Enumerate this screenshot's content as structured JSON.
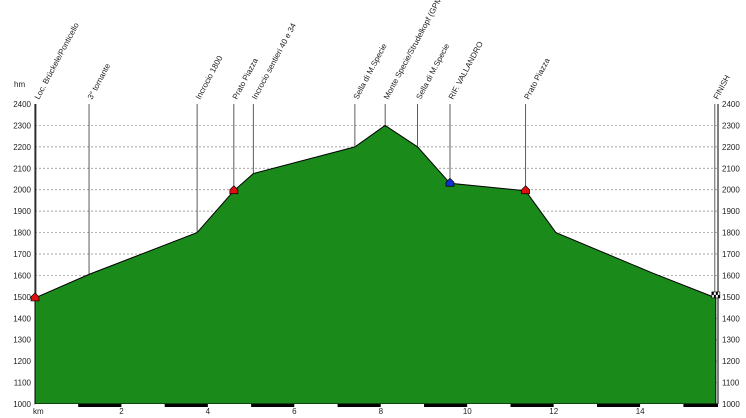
{
  "chart_data": {
    "type": "area",
    "title": "",
    "ylabel": "hm",
    "xlabel": "km",
    "ylim": [
      1000,
      2400
    ],
    "xlim": [
      0,
      15.8
    ],
    "yticks": [
      1000,
      1100,
      1200,
      1300,
      1400,
      1500,
      1600,
      1700,
      1800,
      1900,
      2000,
      2100,
      2200,
      2300,
      2400
    ],
    "xticks": [
      2,
      4,
      6,
      8,
      10,
      12,
      14
    ],
    "grid": true,
    "colors": {
      "fill": "#1a8a1a",
      "line": "#000000",
      "grid": "#888888"
    },
    "profile": [
      {
        "x": 0.0,
        "y": 1495
      },
      {
        "x": 1.25,
        "y": 1605
      },
      {
        "x": 3.75,
        "y": 1800
      },
      {
        "x": 4.6,
        "y": 1995
      },
      {
        "x": 5.05,
        "y": 2075
      },
      {
        "x": 7.4,
        "y": 2200
      },
      {
        "x": 8.1,
        "y": 2300
      },
      {
        "x": 8.85,
        "y": 2200
      },
      {
        "x": 9.6,
        "y": 2030
      },
      {
        "x": 11.35,
        "y": 1995
      },
      {
        "x": 12.05,
        "y": 1800
      },
      {
        "x": 14.3,
        "y": 1610
      },
      {
        "x": 15.75,
        "y": 1495
      }
    ],
    "waypoints": [
      {
        "label": "Loc. Brückele/Ponticello",
        "x": 0.0,
        "y": 1495,
        "marker": "red"
      },
      {
        "label": "3° tornante",
        "x": 1.25,
        "y": 1605,
        "marker": ""
      },
      {
        "label": "Incrocio 1800",
        "x": 3.75,
        "y": 1800,
        "marker": ""
      },
      {
        "label": "Prato Piazza",
        "x": 4.6,
        "y": 1995,
        "marker": "red"
      },
      {
        "label": "Incrocio sentieri 40 e 34",
        "x": 5.05,
        "y": 2075,
        "marker": ""
      },
      {
        "label": "Sella di M.Specie",
        "x": 7.4,
        "y": 2200,
        "marker": ""
      },
      {
        "label": "Monte Specie/Strudelkopf (GPM)",
        "x": 8.1,
        "y": 2300,
        "marker": ""
      },
      {
        "label": "Sella di M.Specie",
        "x": 8.85,
        "y": 2200,
        "marker": ""
      },
      {
        "label": "RIF. VALLANDRO",
        "x": 9.6,
        "y": 2030,
        "marker": "blue"
      },
      {
        "label": "Prato Piazza",
        "x": 11.35,
        "y": 1995,
        "marker": "red"
      },
      {
        "label": "FINISH",
        "x": 15.75,
        "y": 1495,
        "marker": "flag"
      }
    ]
  }
}
